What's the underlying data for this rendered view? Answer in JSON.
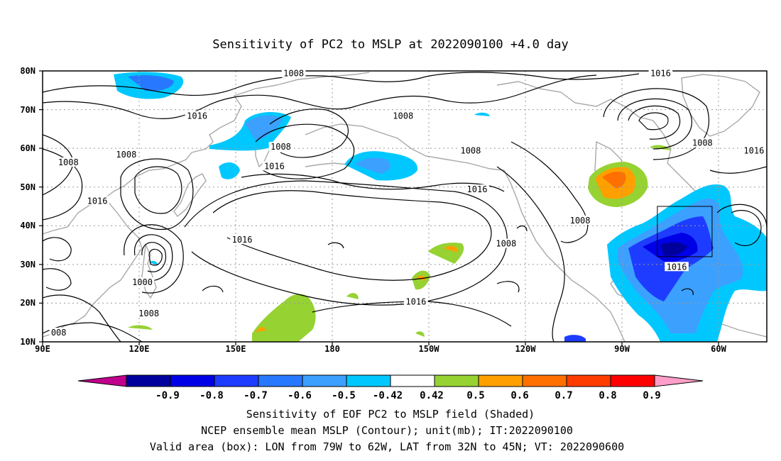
{
  "title": "Sensitivity of PC2 to MSLP at 2022090100 +4.0 day",
  "map": {
    "lon_range_label": [
      "90E",
      "60W"
    ],
    "lat_labels": [
      "80N",
      "70N",
      "60N",
      "50N",
      "40N",
      "30N",
      "20N",
      "10N"
    ],
    "lon_labels": [
      "90E",
      "120E",
      "150E",
      "180",
      "150W",
      "120W",
      "90W",
      "60W"
    ],
    "contour_labels": [
      {
        "text": "1008",
        "lon": 168,
        "lat": 79
      },
      {
        "text": "1016",
        "lon": -78,
        "lat": 79
      },
      {
        "text": "1016",
        "lon": 138,
        "lat": 68
      },
      {
        "text": "1008",
        "lon": -158,
        "lat": 68
      },
      {
        "text": "1008",
        "lon": 164,
        "lat": 60
      },
      {
        "text": "1008",
        "lon": -65,
        "lat": 61
      },
      {
        "text": "1016",
        "lon": -49,
        "lat": 59
      },
      {
        "text": "1008",
        "lon": 116,
        "lat": 58
      },
      {
        "text": "1008",
        "lon": 98,
        "lat": 56
      },
      {
        "text": "1016",
        "lon": 162,
        "lat": 55
      },
      {
        "text": "1008",
        "lon": -137,
        "lat": 59
      },
      {
        "text": "1016",
        "lon": -135,
        "lat": 49
      },
      {
        "text": "1016",
        "lon": 107,
        "lat": 46
      },
      {
        "text": "1008",
        "lon": -103,
        "lat": 41
      },
      {
        "text": "1016",
        "lon": 152,
        "lat": 36
      },
      {
        "text": "1008",
        "lon": -126,
        "lat": 35
      },
      {
        "text": "1016",
        "lon": -73,
        "lat": 29
      },
      {
        "text": "1000",
        "lon": 121,
        "lat": 25
      },
      {
        "text": "1016",
        "lon": -154,
        "lat": 20
      },
      {
        "text": "1008",
        "lon": 123,
        "lat": 17
      },
      {
        "text": "008",
        "lon": 95,
        "lat": 12
      }
    ],
    "valid_box": {
      "lon_min": -79,
      "lon_max": -62,
      "lat_min": 32,
      "lat_max": 45
    }
  },
  "colorbar": {
    "ticks": [
      "-0.9",
      "-0.8",
      "-0.7",
      "-0.6",
      "-0.5",
      "-0.42",
      "0.42",
      "0.5",
      "0.6",
      "0.7",
      "0.8",
      "0.9"
    ],
    "colors": [
      "#c0008c",
      "#00009c",
      "#0000e6",
      "#1e3cff",
      "#2878ff",
      "#3ca0ff",
      "#00c8ff",
      "#ffffff",
      "#96d232",
      "#ffa000",
      "#ff7000",
      "#ff3c00",
      "#ff0000",
      "#ff9ec8"
    ]
  },
  "caption": {
    "line1": "Sensitivity of EOF PC2 to MSLP field (Shaded)",
    "line2": "NCEP ensemble mean MSLP (Contour); unit(mb); IT:2022090100",
    "line3": "Valid area (box): LON from 79W to 62W, LAT from 32N to 45N; VT: 2022090600"
  }
}
